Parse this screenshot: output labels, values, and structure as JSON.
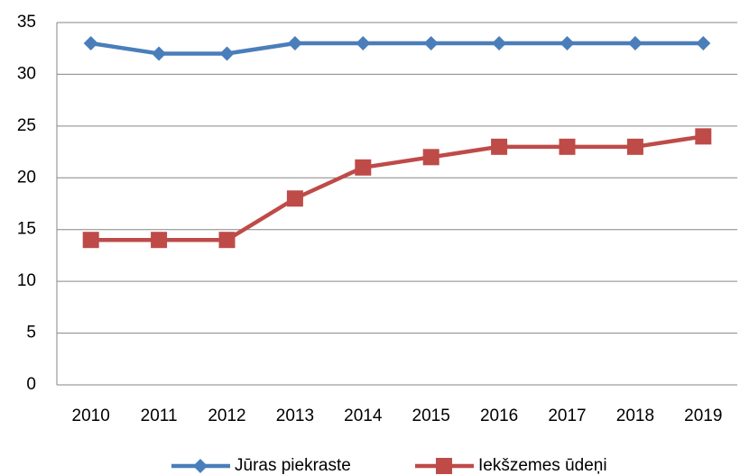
{
  "chart_data": {
    "type": "line",
    "categories": [
      "2010",
      "2011",
      "2012",
      "2013",
      "2014",
      "2015",
      "2016",
      "2017",
      "2018",
      "2019"
    ],
    "series": [
      {
        "name": "Jūras piekraste",
        "color": "#4a7ebb",
        "marker": "diamond",
        "values": [
          33,
          32,
          32,
          33,
          33,
          33,
          33,
          33,
          33,
          33
        ]
      },
      {
        "name": "Iekšzemes ūdeņi",
        "color": "#be4b48",
        "marker": "square",
        "values": [
          14,
          14,
          14,
          18,
          21,
          22,
          23,
          23,
          23,
          24
        ]
      }
    ],
    "ylim": [
      0,
      35
    ],
    "yticks": [
      0,
      5,
      10,
      15,
      20,
      25,
      30,
      35
    ],
    "grid": true,
    "legend": "bottom"
  }
}
